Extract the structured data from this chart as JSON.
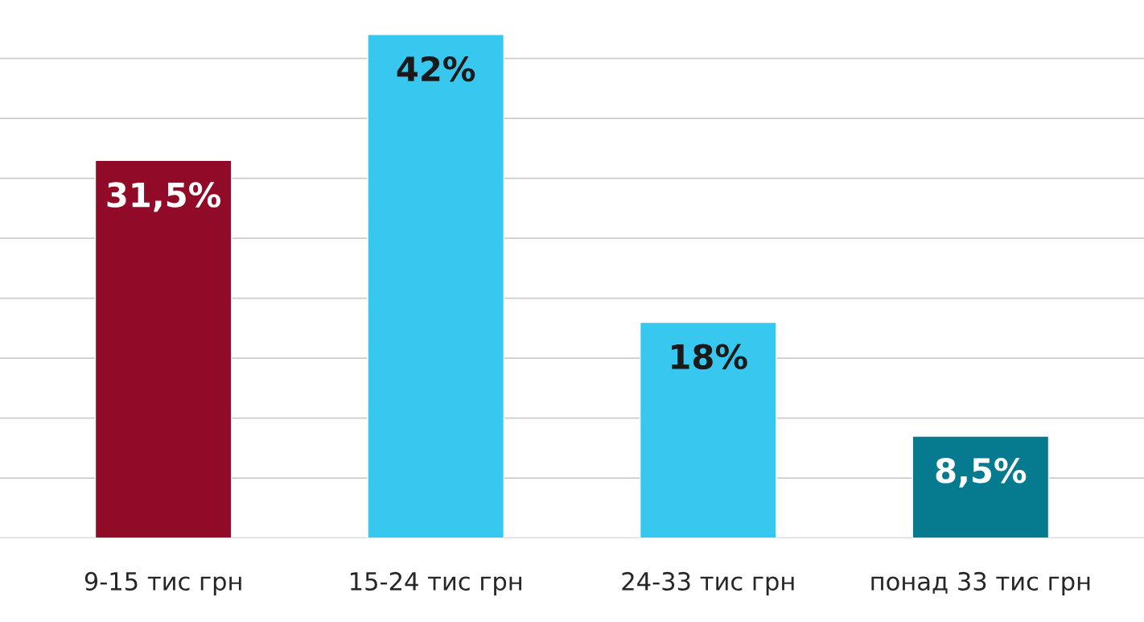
{
  "chart_data": {
    "type": "bar",
    "categories": [
      "9-15 тис грн",
      "15-24 тис грн",
      "24-33 тис грн",
      "понад 33 тис грн"
    ],
    "values": [
      31.5,
      42,
      18,
      8.5
    ],
    "colors": [
      "#910a27",
      "#38c8ef",
      "#38c8ef",
      "#067b8f"
    ],
    "value_labels": [
      "31,5%",
      "42%",
      "18%",
      "8,5%"
    ],
    "grid": "y"
  }
}
